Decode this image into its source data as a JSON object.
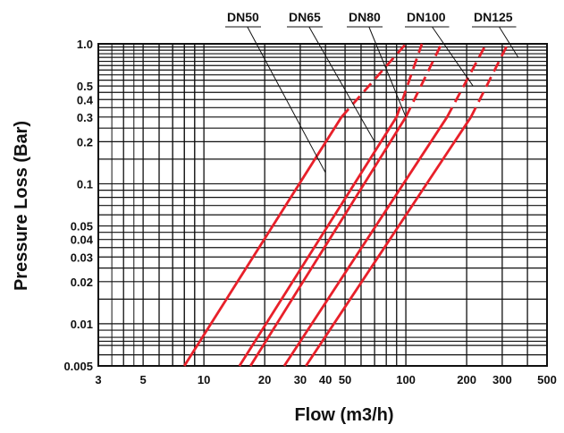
{
  "chart_data": {
    "type": "line",
    "title": "",
    "xlabel": "Flow (m3/h)",
    "ylabel": "Pressure Loss (Bar)",
    "x_scale": "log",
    "y_scale": "log",
    "xlim": [
      3,
      500
    ],
    "ylim": [
      0.005,
      1.0
    ],
    "grid": true,
    "x_ticks": [
      3,
      5,
      10,
      20,
      30,
      40,
      50,
      100,
      200,
      300,
      500
    ],
    "x_tick_labels": [
      "3",
      "5",
      "10",
      "20",
      "30",
      "40",
      "50",
      "100",
      "200",
      "300",
      "500"
    ],
    "y_ticks": [
      0.005,
      0.01,
      0.02,
      0.03,
      0.04,
      0.05,
      0.1,
      0.2,
      0.3,
      0.4,
      0.5,
      1.0
    ],
    "y_tick_labels": [
      "0.005",
      "0.01",
      "0.02",
      "0.03",
      "0.04",
      "0.05",
      "0.1",
      "0.2",
      "0.3",
      "0.4",
      "0.5",
      "1.0"
    ],
    "legend_placement": "top, with leader lines to each curve",
    "line_color": "#e8202a",
    "series": [
      {
        "name": "DN50",
        "solid": [
          [
            8,
            0.005
          ],
          [
            48,
            0.3
          ]
        ],
        "dashed": [
          [
            48,
            0.3
          ],
          [
            100,
            1.0
          ]
        ]
      },
      {
        "name": "DN65",
        "solid": [
          [
            15,
            0.005
          ],
          [
            90,
            0.3
          ]
        ],
        "dashed": [
          [
            90,
            0.3
          ],
          [
            120,
            1.0
          ]
        ]
      },
      {
        "name": "DN80",
        "solid": [
          [
            17,
            0.005
          ],
          [
            100,
            0.3
          ]
        ],
        "dashed": [
          [
            100,
            0.3
          ],
          [
            150,
            1.0
          ]
        ]
      },
      {
        "name": "DN100",
        "solid": [
          [
            25,
            0.005
          ],
          [
            160,
            0.3
          ]
        ],
        "dashed": [
          [
            160,
            0.3
          ],
          [
            250,
            1.0
          ]
        ]
      },
      {
        "name": "DN125",
        "solid": [
          [
            32,
            0.005
          ],
          [
            210,
            0.3
          ]
        ],
        "dashed": [
          [
            210,
            0.3
          ],
          [
            320,
            1.0
          ]
        ]
      }
    ]
  }
}
